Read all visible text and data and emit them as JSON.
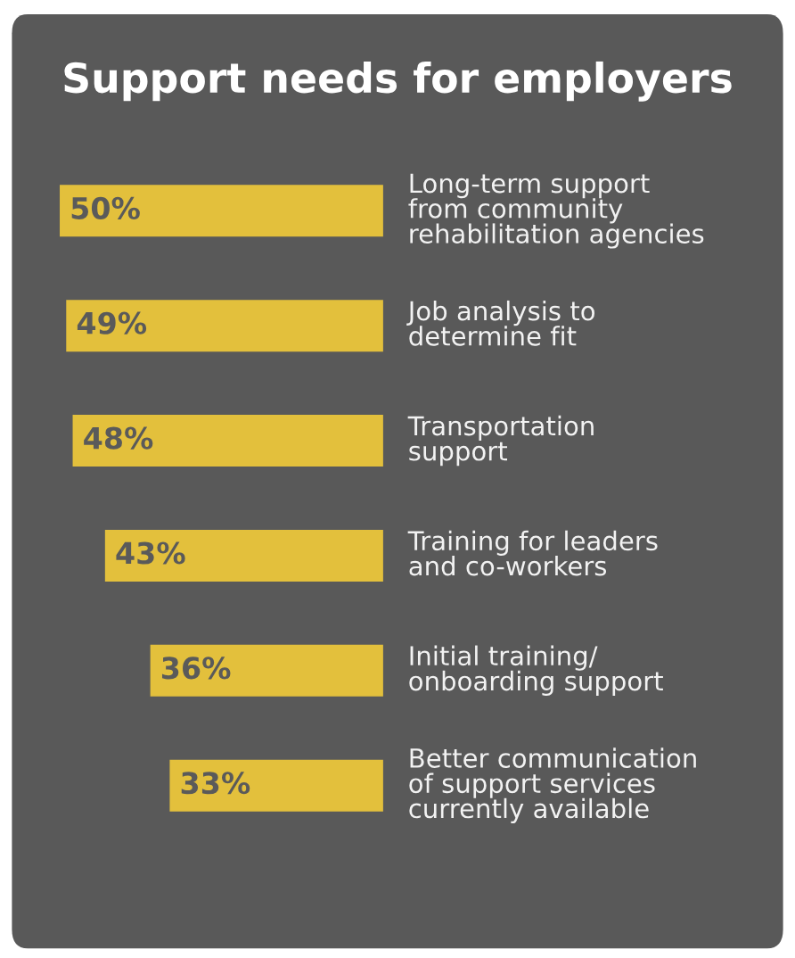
{
  "chart_data": {
    "type": "bar",
    "orientation": "horizontal",
    "title": "Support needs for employers",
    "categories": [
      "Long-term support\nfrom community\nrehabilitation agencies",
      "Job analysis to\ndetermine fit",
      "Transportation\nsupport",
      "Training for leaders\nand co-workers",
      "Initial training/\nonboarding support",
      "Better communication\nof support services\ncurrently available"
    ],
    "values": [
      50,
      49,
      48,
      43,
      36,
      33
    ],
    "value_labels": [
      "50%",
      "49%",
      "48%",
      "43%",
      "36%",
      "33%"
    ],
    "color": "#e3c03c",
    "xlim": [
      51,
      0
    ],
    "legend": false
  }
}
